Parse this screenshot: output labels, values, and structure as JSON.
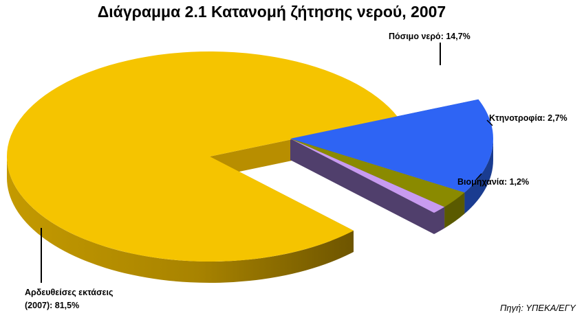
{
  "chart_data": {
    "type": "pie",
    "title": "Διάγραμμα 2.1 Κατανομή ζήτησης νερού, 2007",
    "slices": [
      {
        "label_line1": "Αρδευθείσες εκτάσεις",
        "label_line2": "(2007): 81,5%",
        "value": 81.5,
        "color": "#F5C400",
        "side": "#B88E00"
      },
      {
        "label": "Πόσιμο νερό: 14,7%",
        "value": 14.7,
        "color": "#2E64F4",
        "side": "#1A3C90"
      },
      {
        "label": "Κτηνοτροφία: 2,7%",
        "value": 2.7,
        "color": "#8A8A00",
        "side": "#5A5A00"
      },
      {
        "label": "Βιομηχανία: 1,2%",
        "value": 1.2,
        "color": "#C89BF0",
        "side": "#503F6C"
      }
    ],
    "exploded": [
      1,
      2,
      3
    ],
    "source": "Πηγή: ΥΠΕΚΑ/ΕΓΥ"
  }
}
